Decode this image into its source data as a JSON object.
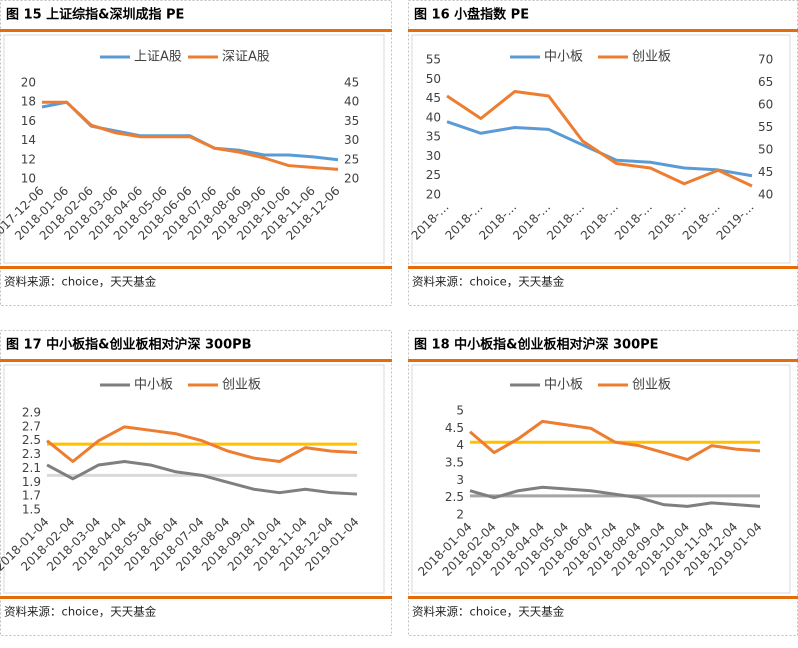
{
  "chart_data": [
    {
      "type": "line",
      "title": "图 15  上证综指&深圳成指 PE",
      "source": "资料来源：choice，天天基金",
      "categories": [
        "2017-12-06",
        "2018-01-06",
        "2018-02-06",
        "2018-03-06",
        "2018-04-06",
        "2018-05-06",
        "2018-06-06",
        "2018-07-06",
        "2018-08-06",
        "2018-09-06",
        "2018-10-06",
        "2018-11-06",
        "2018-12-06"
      ],
      "ylim": [
        10,
        20
      ],
      "yticks": [
        10,
        12,
        14,
        16,
        18,
        20
      ],
      "y2lim": [
        20,
        45
      ],
      "y2ticks": [
        20,
        25,
        30,
        35,
        40,
        45
      ],
      "series": [
        {
          "name": "上证A股",
          "color": "#5b9bd5",
          "values": [
            17.5,
            18,
            15.5,
            15,
            14.5,
            14.5,
            14.5,
            13.2,
            13,
            12.5,
            12.5,
            12.3,
            12
          ]
        },
        {
          "name": "深证A股",
          "color": "#ed7d31",
          "axis": "y2",
          "values": [
            40,
            40,
            34,
            32,
            31,
            31,
            31,
            28,
            27,
            25.5,
            23.5,
            23,
            22.5
          ]
        }
      ]
    },
    {
      "type": "line",
      "title": "图 16  小盘指数 PE",
      "source": "资料来源：choice，天天基金",
      "categories": [
        "2018-…",
        "2018-…",
        "2018-…",
        "2018-…",
        "2018-…",
        "2018-…",
        "2018-…",
        "2018-…",
        "2018-…",
        "2019-…"
      ],
      "ylim": [
        20,
        55
      ],
      "yticks": [
        20,
        25,
        30,
        35,
        40,
        45,
        50,
        55
      ],
      "y2lim": [
        40,
        70
      ],
      "y2ticks": [
        40,
        45,
        50,
        55,
        60,
        65,
        70
      ],
      "series": [
        {
          "name": "中小板",
          "color": "#5b9bd5",
          "values": [
            39,
            36,
            37.5,
            37,
            33,
            29,
            28.5,
            27,
            26.5,
            25
          ]
        },
        {
          "name": "创业板",
          "color": "#ed7d31",
          "axis": "y2",
          "values": [
            62,
            57,
            63,
            62,
            52,
            47,
            46,
            42.5,
            45.5,
            42
          ]
        }
      ]
    },
    {
      "type": "line",
      "title": "图 17  中小板指&创业板相对沪深 300PB",
      "source": "资料来源：choice，天天基金",
      "categories": [
        "2018-01-04",
        "2018-02-04",
        "2018-03-04",
        "2018-04-04",
        "2018-05-04",
        "2018-06-04",
        "2018-07-04",
        "2018-08-04",
        "2018-09-04",
        "2018-10-04",
        "2018-11-04",
        "2018-12-04",
        "2019-01-04"
      ],
      "ylim": [
        1.5,
        2.9
      ],
      "yticks": [
        1.5,
        1.7,
        1.9,
        2.1,
        2.3,
        2.5,
        2.7,
        2.9
      ],
      "reference_lines": [
        {
          "value": 2.45,
          "color": "#ffc000"
        },
        {
          "value": 2.0,
          "color": "#d9d9d9"
        }
      ],
      "series": [
        {
          "name": "中小板",
          "color": "#7f7f7f",
          "values": [
            2.15,
            1.95,
            2.15,
            2.2,
            2.15,
            2.05,
            2.0,
            1.9,
            1.8,
            1.75,
            1.8,
            1.75,
            1.73
          ]
        },
        {
          "name": "创业板",
          "color": "#ed7d31",
          "values": [
            2.5,
            2.2,
            2.5,
            2.7,
            2.65,
            2.6,
            2.5,
            2.35,
            2.25,
            2.2,
            2.4,
            2.35,
            2.33
          ]
        }
      ]
    },
    {
      "type": "line",
      "title": "图 18  中小板指&创业板相对沪深 300PE",
      "source": "资料来源：choice，天天基金",
      "categories": [
        "2018-01-04",
        "2018-02-04",
        "2018-03-04",
        "2018-04-04",
        "2018-05-04",
        "2018-06-04",
        "2018-07-04",
        "2018-08-04",
        "2018-09-04",
        "2018-10-04",
        "2018-11-04",
        "2018-12-04",
        "2019-01-04"
      ],
      "ylim": [
        2,
        5
      ],
      "yticks": [
        2,
        2.5,
        3,
        3.5,
        4,
        4.5,
        5
      ],
      "reference_lines": [
        {
          "value": 4.1,
          "color": "#ffc000"
        },
        {
          "value": 2.55,
          "color": "#a5a5a5"
        }
      ],
      "series": [
        {
          "name": "中小板",
          "color": "#7f7f7f",
          "values": [
            2.7,
            2.5,
            2.7,
            2.8,
            2.75,
            2.7,
            2.6,
            2.5,
            2.3,
            2.25,
            2.35,
            2.3,
            2.25
          ]
        },
        {
          "name": "创业板",
          "color": "#ed7d31",
          "values": [
            4.4,
            3.8,
            4.2,
            4.7,
            4.6,
            4.5,
            4.1,
            4.0,
            3.8,
            3.6,
            4.0,
            3.9,
            3.85
          ]
        }
      ]
    }
  ]
}
